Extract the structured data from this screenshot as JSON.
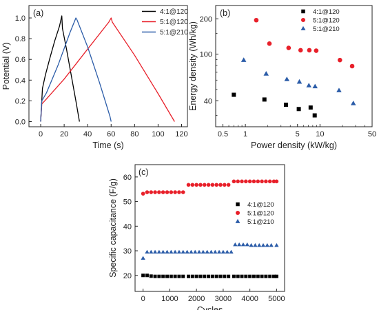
{
  "chart_data": [
    {
      "panel": "(a)",
      "type": "line",
      "xlabel": "Time (s)",
      "ylabel": "Potential (V)",
      "xlim": [
        -10,
        125
      ],
      "ylim": [
        -0.05,
        1.12
      ],
      "xticks": [
        0,
        20,
        40,
        60,
        80,
        100,
        120
      ],
      "yticks": [
        0.0,
        0.2,
        0.4,
        0.6,
        0.8,
        1.0
      ],
      "ytick_labels": [
        "0.0",
        "0.2",
        "0.4",
        "0.6",
        "0.8",
        "1.0"
      ],
      "legend_position": "top-right",
      "series": [
        {
          "name": "4:1@120",
          "color": "#000000",
          "points": [
            [
              0,
              0
            ],
            [
              1.5,
              0.32
            ],
            [
              4,
              0.45
            ],
            [
              8,
              0.62
            ],
            [
              12,
              0.78
            ],
            [
              16,
              0.92
            ],
            [
              18,
              1.02
            ],
            [
              18.5,
              0.9
            ],
            [
              22,
              0.7
            ],
            [
              26,
              0.45
            ],
            [
              30,
              0.2
            ],
            [
              33,
              0
            ]
          ]
        },
        {
          "name": "5:1@120",
          "color": "#e8202a",
          "points": [
            [
              0,
              0
            ],
            [
              1,
              0.17
            ],
            [
              5,
              0.22
            ],
            [
              20,
              0.41
            ],
            [
              40,
              0.7
            ],
            [
              58,
              0.96
            ],
            [
              60,
              1.0
            ],
            [
              61,
              0.96
            ],
            [
              80,
              0.64
            ],
            [
              100,
              0.27
            ],
            [
              114,
              0
            ]
          ]
        },
        {
          "name": "5:1@210",
          "color": "#2b5ca8",
          "points": [
            [
              0,
              0
            ],
            [
              1,
              0.2
            ],
            [
              5,
              0.28
            ],
            [
              15,
              0.55
            ],
            [
              25,
              0.86
            ],
            [
              30,
              1.0
            ],
            [
              31,
              0.98
            ],
            [
              40,
              0.72
            ],
            [
              50,
              0.38
            ],
            [
              59,
              0.05
            ],
            [
              60,
              0
            ]
          ]
        }
      ]
    },
    {
      "panel": "(b)",
      "type": "scatter",
      "xlabel": "Power density (kW/kg)",
      "ylabel": "Energy density (Wh/kg)",
      "xscale": "log",
      "yscale": "log",
      "xlim": [
        0.4,
        50
      ],
      "ylim": [
        24,
        260
      ],
      "xticks": [
        0.5,
        1,
        5,
        10,
        50
      ],
      "xtick_labels": [
        "0.5",
        "1",
        "5",
        "10",
        "50"
      ],
      "yticks": [
        40,
        100,
        200
      ],
      "ytick_labels": [
        "40",
        "100",
        "200"
      ],
      "legend_position": "top-right",
      "series": [
        {
          "name": "4:1@120",
          "color": "#000000",
          "marker": "square",
          "points": [
            [
              0.7,
              45
            ],
            [
              1.8,
              41
            ],
            [
              3.5,
              37
            ],
            [
              5.2,
              34
            ],
            [
              7.5,
              35
            ],
            [
              8.5,
              30
            ]
          ]
        },
        {
          "name": "5:1@120",
          "color": "#e8202a",
          "marker": "circle",
          "points": [
            [
              1.4,
              195
            ],
            [
              2.1,
              123
            ],
            [
              3.8,
              113
            ],
            [
              5.5,
              108
            ],
            [
              7.2,
              108
            ],
            [
              8.9,
              107
            ],
            [
              18.5,
              89
            ],
            [
              27,
              79
            ]
          ]
        },
        {
          "name": "5:1@210",
          "color": "#2b5ca8",
          "marker": "triangle",
          "points": [
            [
              0.95,
              89
            ],
            [
              1.9,
              68
            ],
            [
              3.6,
              61
            ],
            [
              5.3,
              58
            ],
            [
              7.1,
              54
            ],
            [
              8.6,
              53
            ],
            [
              18,
              49
            ],
            [
              28,
              38
            ]
          ]
        }
      ]
    },
    {
      "panel": "(c)",
      "type": "scatter",
      "xlabel": "Cycles",
      "ylabel": "Specific capacitance (F/g)",
      "xlim": [
        -300,
        5300
      ],
      "ylim": [
        13.5,
        65
      ],
      "xticks": [
        0,
        1000,
        2000,
        3000,
        4000,
        5000
      ],
      "yticks": [
        20,
        30,
        40,
        50,
        60
      ],
      "legend_position": "center-right",
      "series": [
        {
          "name": "4:1@120",
          "color": "#000000",
          "marker": "square",
          "x": [
            0,
            150,
            300,
            450,
            600,
            750,
            900,
            1050,
            1200,
            1350,
            1500,
            1700,
            1850,
            2000,
            2150,
            2300,
            2450,
            2600,
            2750,
            2900,
            3050,
            3200,
            3400,
            3550,
            3700,
            3850,
            4000,
            4150,
            4300,
            4450,
            4600,
            4750,
            4900,
            5000
          ],
          "y": [
            20,
            20,
            19.7,
            19.6,
            19.6,
            19.6,
            19.6,
            19.6,
            19.6,
            19.6,
            19.6,
            19.6,
            19.6,
            19.6,
            19.6,
            19.6,
            19.6,
            19.6,
            19.6,
            19.6,
            19.6,
            19.6,
            19.6,
            19.6,
            19.6,
            19.6,
            19.6,
            19.6,
            19.6,
            19.6,
            19.6,
            19.6,
            19.6,
            19.6
          ]
        },
        {
          "name": "5:1@120",
          "color": "#e8202a",
          "marker": "circle",
          "x": [
            0,
            150,
            300,
            450,
            600,
            750,
            900,
            1050,
            1200,
            1350,
            1500,
            1700,
            1850,
            2000,
            2150,
            2300,
            2450,
            2600,
            2750,
            2900,
            3050,
            3200,
            3400,
            3550,
            3700,
            3850,
            4000,
            4150,
            4300,
            4450,
            4600,
            4750,
            4900,
            5000
          ],
          "y": [
            53.2,
            53.8,
            53.8,
            53.8,
            53.8,
            53.8,
            53.8,
            53.8,
            53.8,
            53.8,
            53.8,
            56.8,
            56.8,
            56.8,
            56.8,
            56.8,
            56.8,
            56.8,
            56.8,
            56.8,
            56.8,
            56.8,
            58.2,
            58.2,
            58.2,
            58.2,
            58.2,
            58.2,
            58.2,
            58.2,
            58.2,
            58.2,
            58.2,
            58.2
          ]
        },
        {
          "name": "5:1@210",
          "color": "#2b5ca8",
          "marker": "triangle",
          "x": [
            0,
            150,
            300,
            450,
            600,
            750,
            900,
            1050,
            1200,
            1350,
            1500,
            1650,
            1800,
            1950,
            2100,
            2250,
            2400,
            2550,
            2700,
            2850,
            3000,
            3150,
            3300,
            3450,
            3600,
            3750,
            3900,
            4050,
            4200,
            4350,
            4500,
            4650,
            4800,
            5000
          ],
          "y": [
            27,
            29.5,
            29.5,
            29.5,
            29.5,
            29.5,
            29.5,
            29.5,
            29.5,
            29.5,
            29.5,
            29.5,
            29.5,
            29.5,
            29.5,
            29.5,
            29.5,
            29.5,
            29.5,
            29.5,
            29.5,
            29.5,
            29.5,
            32.5,
            32.5,
            32.5,
            32.5,
            32.2,
            32.2,
            32.2,
            32.2,
            32.2,
            32.2,
            32.2
          ]
        }
      ]
    }
  ]
}
